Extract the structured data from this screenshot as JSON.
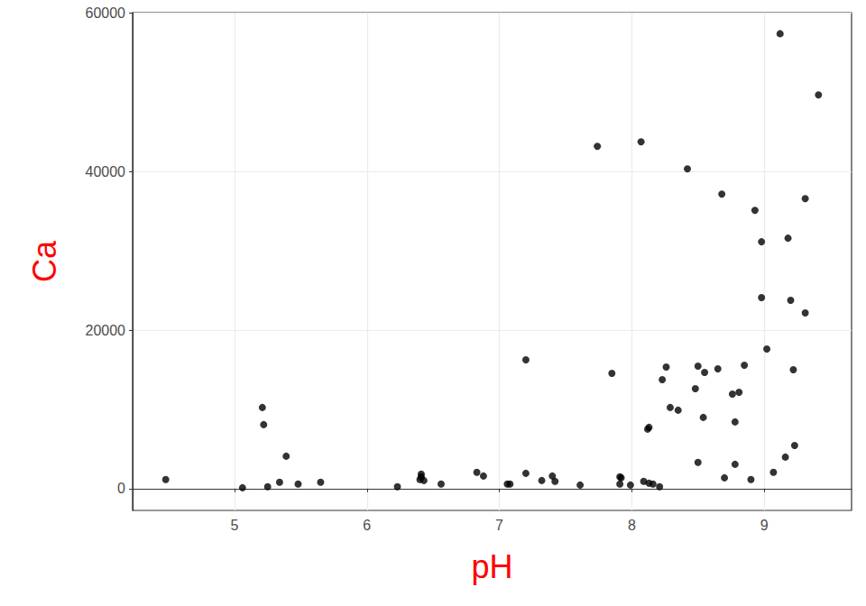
{
  "chart_data": {
    "type": "scatter",
    "xlabel": "pH",
    "ylabel": "Ca",
    "x": [
      4.48,
      5.06,
      5.21,
      5.22,
      5.25,
      5.34,
      5.39,
      5.48,
      5.65,
      6.23,
      6.41,
      6.41,
      6.4,
      6.43,
      6.56,
      6.83,
      6.88,
      7.06,
      7.08,
      7.2,
      7.2,
      7.32,
      7.4,
      7.42,
      7.61,
      7.74,
      7.85,
      7.91,
      7.92,
      7.91,
      7.99,
      8.07,
      8.09,
      8.12,
      8.13,
      8.13,
      8.16,
      8.21,
      8.23,
      8.26,
      8.29,
      8.35,
      8.42,
      8.48,
      8.5,
      8.5,
      8.54,
      8.55,
      8.65,
      8.68,
      8.7,
      8.76,
      8.78,
      8.78,
      8.81,
      8.85,
      8.9,
      8.93,
      8.98,
      8.98,
      9.02,
      9.07,
      9.12,
      9.16,
      9.18,
      9.2,
      9.22,
      9.23,
      9.31,
      9.31,
      9.41
    ],
    "values": [
      1140,
      110,
      10230,
      8070,
      230,
      800,
      4090,
      570,
      800,
      230,
      1480,
      1820,
      1140,
      1020,
      570,
      2050,
      1590,
      570,
      570,
      16250,
      1930,
      1020,
      1590,
      910,
      450,
      43180,
      14550,
      1480,
      1360,
      570,
      450,
      43750,
      910,
      7500,
      7730,
      680,
      570,
      230,
      13750,
      15340,
      10230,
      9890,
      40340,
      12610,
      15450,
      3300,
      8980,
      14660,
      15110,
      37160,
      1360,
      11930,
      8410,
      3070,
      12160,
      15570,
      1140,
      35110,
      31140,
      24090,
      17610,
      2050,
      57390,
      3980,
      31590,
      23750,
      15000,
      5450,
      22160,
      36590,
      49660
    ],
    "color": "#000000",
    "xlim": [
      4.23,
      9.66
    ],
    "xticks": [
      5,
      6,
      7,
      8,
      9
    ],
    "ylim": [
      -2750,
      60050
    ],
    "yticks": [
      0,
      20000,
      40000,
      60000
    ],
    "grid": true
  }
}
